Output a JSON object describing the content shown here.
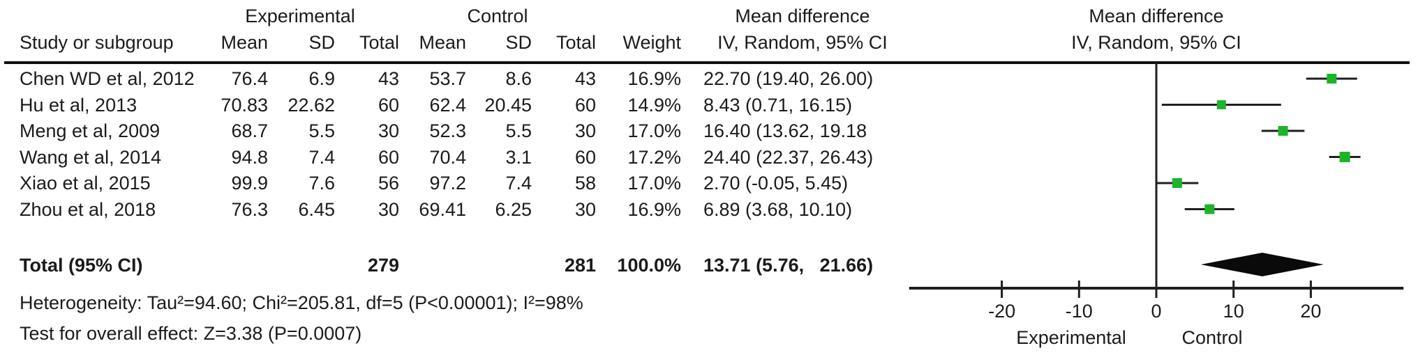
{
  "figure": {
    "group_headers": {
      "experimental": "Experimental",
      "control": "Control"
    },
    "col_headers": {
      "study": "Study or subgroup",
      "mean": "Mean",
      "sd": "SD",
      "total": "Total",
      "mean2": "Mean",
      "sd2": "SD",
      "total2": "Total",
      "weight": "Weight",
      "md_line1": "Mean difference",
      "md_line2": "IV, Random, 95% CI"
    },
    "plot_headers": {
      "line1": "Mean difference",
      "line2": "IV, Random, 95% CI"
    },
    "rows": [
      {
        "study": "Chen WD et al, 2012",
        "e_mean": "76.4",
        "e_sd": "6.9",
        "e_total": "43",
        "c_mean": "53.7",
        "c_sd": "8.6",
        "c_total": "43",
        "weight": "16.9%",
        "md_ci": "22.70 (19.40, 26.00)"
      },
      {
        "study": "Hu et al, 2013",
        "e_mean": "70.83",
        "e_sd": "22.62",
        "e_total": "60",
        "c_mean": "62.4",
        "c_sd": "20.45",
        "c_total": "60",
        "weight": "14.9%",
        "md_ci": "8.43 (0.71, 16.15)"
      },
      {
        "study": "Meng et al, 2009",
        "e_mean": "68.7",
        "e_sd": "5.5",
        "e_total": "30",
        "c_mean": "52.3",
        "c_sd": "5.5",
        "c_total": "30",
        "weight": "17.0%",
        "md_ci": "16.40 (13.62, 19.18"
      },
      {
        "study": "Wang et al, 2014",
        "e_mean": "94.8",
        "e_sd": "7.4",
        "e_total": "60",
        "c_mean": "70.4",
        "c_sd": "3.1",
        "c_total": "60",
        "weight": "17.2%",
        "md_ci": "24.40 (22.37, 26.43)"
      },
      {
        "study": "Xiao et al, 2015",
        "e_mean": "99.9",
        "e_sd": "7.6",
        "e_total": "56",
        "c_mean": "97.2",
        "c_sd": "7.4",
        "c_total": "58",
        "weight": "17.0%",
        "md_ci": "2.70 (-0.05, 5.45)"
      },
      {
        "study": "Zhou et al, 2018",
        "e_mean": "76.3",
        "e_sd": "6.45",
        "e_total": "30",
        "c_mean": "69.41",
        "c_sd": "6.25",
        "c_total": "30",
        "weight": "16.9%",
        "md_ci": "6.89 (3.68, 10.10)"
      }
    ],
    "total_row": {
      "label": "Total (95% CI)",
      "e_total": "279",
      "c_total": "281",
      "weight": "100.0%",
      "md_ci": "13.71 (5.76,   21.66)"
    },
    "footnotes": {
      "heterogeneity": "Heterogeneity: Tau²=94.60; Chi²=205.81, df=5 (P<0.00001); I²=98%",
      "overall_effect": "Test for overall effect: Z=3.38 (P=0.0007)"
    }
  },
  "chart_data": {
    "type": "forest",
    "title": "Mean difference IV, Random, 95% CI",
    "categories": [
      "Chen WD et al, 2012",
      "Hu et al, 2013",
      "Meng et al, 2009",
      "Wang et al, 2014",
      "Xiao et al, 2015",
      "Zhou et al, 2018"
    ],
    "series": [
      {
        "name": "Chen WD et al, 2012",
        "md": 22.7,
        "ci_low": 19.4,
        "ci_high": 26.0,
        "weight_pct": 16.9,
        "exp_mean": 76.4,
        "exp_sd": 6.9,
        "exp_total": 43,
        "ctrl_mean": 53.7,
        "ctrl_sd": 8.6,
        "ctrl_total": 43
      },
      {
        "name": "Hu et al, 2013",
        "md": 8.43,
        "ci_low": 0.71,
        "ci_high": 16.15,
        "weight_pct": 14.9,
        "exp_mean": 70.83,
        "exp_sd": 22.62,
        "exp_total": 60,
        "ctrl_mean": 62.4,
        "ctrl_sd": 20.45,
        "ctrl_total": 60
      },
      {
        "name": "Meng et al, 2009",
        "md": 16.4,
        "ci_low": 13.62,
        "ci_high": 19.18,
        "weight_pct": 17.0,
        "exp_mean": 68.7,
        "exp_sd": 5.5,
        "exp_total": 30,
        "ctrl_mean": 52.3,
        "ctrl_sd": 5.5,
        "ctrl_total": 30
      },
      {
        "name": "Wang et al, 2014",
        "md": 24.4,
        "ci_low": 22.37,
        "ci_high": 26.43,
        "weight_pct": 17.2,
        "exp_mean": 94.8,
        "exp_sd": 7.4,
        "exp_total": 60,
        "ctrl_mean": 70.4,
        "ctrl_sd": 3.1,
        "ctrl_total": 60
      },
      {
        "name": "Xiao et al, 2015",
        "md": 2.7,
        "ci_low": -0.05,
        "ci_high": 5.45,
        "weight_pct": 17.0,
        "exp_mean": 99.9,
        "exp_sd": 7.6,
        "exp_total": 56,
        "ctrl_mean": 97.2,
        "ctrl_sd": 7.4,
        "ctrl_total": 58
      },
      {
        "name": "Zhou et al, 2018",
        "md": 6.89,
        "ci_low": 3.68,
        "ci_high": 10.1,
        "weight_pct": 16.9,
        "exp_mean": 76.3,
        "exp_sd": 6.45,
        "exp_total": 30,
        "ctrl_mean": 69.41,
        "ctrl_sd": 6.25,
        "ctrl_total": 30
      }
    ],
    "total": {
      "label": "Total (95% CI)",
      "md": 13.71,
      "ci_low": 5.76,
      "ci_high": 21.66,
      "weight_pct": 100.0,
      "exp_total": 279,
      "ctrl_total": 281
    },
    "x_ticks": [
      -20,
      -10,
      0,
      10,
      20
    ],
    "xlim": [
      -32,
      32
    ],
    "axis_labels": {
      "left": "Experimental",
      "right": "Control"
    },
    "marker_color": "#1db32a",
    "line_color": "#1f1f1f",
    "diamond_color": "#0a0a0a",
    "legend_position": "none",
    "grid": false
  }
}
